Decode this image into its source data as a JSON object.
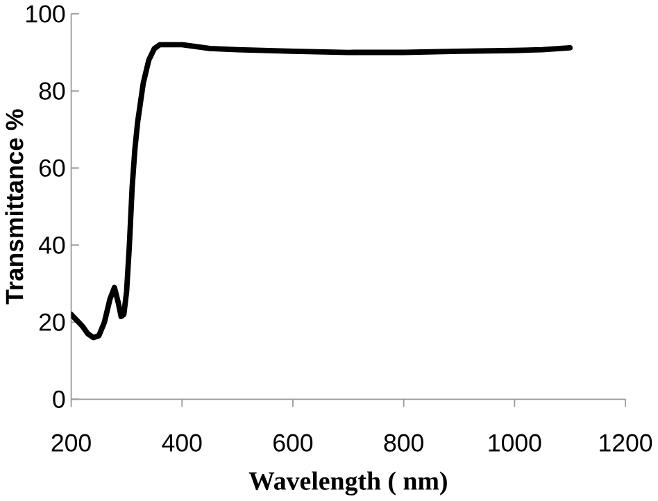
{
  "chart_data": {
    "type": "line",
    "xlabel": "Wavelength  ( nm)",
    "ylabel": "Transmittance %",
    "x": [
      200,
      210,
      220,
      230,
      240,
      250,
      260,
      270,
      278,
      285,
      290,
      295,
      300,
      305,
      310,
      315,
      320,
      330,
      340,
      350,
      360,
      380,
      400,
      450,
      500,
      600,
      700,
      800,
      900,
      1000,
      1050,
      1100
    ],
    "series": [
      {
        "color": "#000000",
        "values": [
          22,
          20.5,
          19,
          17,
          16,
          16.5,
          20,
          26,
          29,
          25,
          21.5,
          22,
          28,
          40,
          55,
          65,
          72,
          82,
          88,
          91,
          92,
          92,
          92,
          91,
          90.7,
          90.3,
          90,
          90,
          90.3,
          90.5,
          90.7,
          91.2
        ]
      }
    ],
    "xlim": [
      200,
      1200
    ],
    "xticks": [
      200,
      400,
      600,
      800,
      1000,
      1200
    ],
    "ylim": [
      0,
      100
    ],
    "yticks": [
      0,
      20,
      40,
      60,
      80,
      100
    ],
    "grid": false,
    "marker": "none",
    "line_style": "solid"
  }
}
